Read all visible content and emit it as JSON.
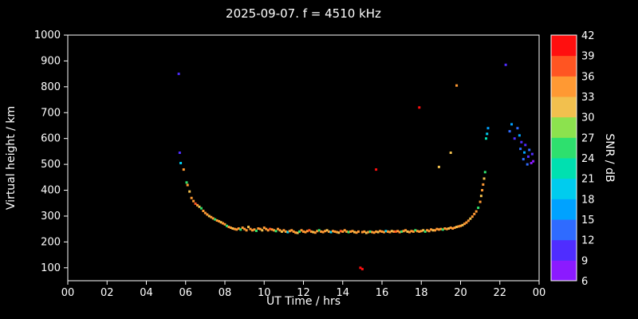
{
  "colors": {
    "background": "#000000",
    "foreground": "#ffffff"
  },
  "chart_data": {
    "type": "scatter",
    "title": "2025-09-07. f = 4510 kHz",
    "xlabel": "UT Time / hrs",
    "ylabel": "Virtual height / km",
    "xlim": [
      0,
      24
    ],
    "ylim": [
      50,
      1000
    ],
    "grid": false,
    "x_tick_values": [
      0,
      2,
      4,
      6,
      8,
      10,
      12,
      14,
      16,
      18,
      20,
      22,
      24
    ],
    "x_tick_labels": [
      "00",
      "02",
      "04",
      "06",
      "08",
      "10",
      "12",
      "14",
      "16",
      "18",
      "20",
      "22",
      "00"
    ],
    "y_tick_values": [
      1000,
      900,
      800,
      700,
      600,
      500,
      400,
      300,
      200,
      100
    ],
    "y_tick_labels": [
      "1000",
      "900",
      "800",
      "700",
      "600",
      "500",
      "400",
      "300",
      "200",
      "100"
    ],
    "colorbar": {
      "label": "SNR / dB",
      "min": 6,
      "max": 42,
      "tick_values": [
        42,
        39,
        36,
        33,
        30,
        27,
        24,
        21,
        18,
        15,
        12,
        9,
        6
      ],
      "segment_colors_bottom_to_top": [
        "#8b1aff",
        "#4f2dff",
        "#2f6bff",
        "#00a2ff",
        "#00ccee",
        "#00e0b0",
        "#2ee06e",
        "#8ce24e",
        "#f2c04e",
        "#ff9933",
        "#ff5522",
        "#ff0f0f"
      ]
    },
    "points_format": [
      "ut_hours",
      "virtual_height_km",
      "snr_db"
    ],
    "points": [
      [
        5.65,
        850,
        11
      ],
      [
        5.7,
        545,
        11
      ],
      [
        5.75,
        505,
        20
      ],
      [
        5.9,
        480,
        34
      ],
      [
        6.05,
        430,
        26
      ],
      [
        6.1,
        420,
        34
      ],
      [
        6.2,
        395,
        31
      ],
      [
        6.3,
        370,
        34
      ],
      [
        6.4,
        358,
        34
      ],
      [
        6.5,
        348,
        37
      ],
      [
        6.6,
        342,
        34
      ],
      [
        6.7,
        336,
        31
      ],
      [
        6.8,
        330,
        26
      ],
      [
        6.9,
        320,
        34
      ],
      [
        7.0,
        312,
        34
      ],
      [
        7.1,
        306,
        34
      ],
      [
        7.2,
        300,
        31
      ],
      [
        7.3,
        296,
        34
      ],
      [
        7.4,
        291,
        34
      ],
      [
        7.5,
        287,
        26
      ],
      [
        7.6,
        283,
        34
      ],
      [
        7.7,
        280,
        34
      ],
      [
        7.8,
        276,
        31
      ],
      [
        7.9,
        272,
        34
      ],
      [
        8.0,
        268,
        34
      ],
      [
        8.1,
        262,
        26
      ],
      [
        8.2,
        258,
        34
      ],
      [
        8.3,
        255,
        34
      ],
      [
        8.4,
        252,
        31
      ],
      [
        8.5,
        250,
        34
      ],
      [
        8.6,
        248,
        34
      ],
      [
        8.7,
        252,
        34
      ],
      [
        8.8,
        248,
        26
      ],
      [
        8.9,
        255,
        34
      ],
      [
        9.0,
        250,
        34
      ],
      [
        9.1,
        245,
        34
      ],
      [
        9.2,
        258,
        31
      ],
      [
        9.3,
        250,
        34
      ],
      [
        9.4,
        245,
        34
      ],
      [
        9.5,
        248,
        34
      ],
      [
        9.6,
        243,
        26
      ],
      [
        9.7,
        252,
        34
      ],
      [
        9.8,
        250,
        34
      ],
      [
        9.9,
        245,
        31
      ],
      [
        10.0,
        255,
        34
      ],
      [
        10.1,
        250,
        34
      ],
      [
        10.2,
        245,
        34
      ],
      [
        10.3,
        250,
        37
      ],
      [
        10.4,
        248,
        34
      ],
      [
        10.5,
        245,
        34
      ],
      [
        10.6,
        242,
        26
      ],
      [
        10.7,
        250,
        34
      ],
      [
        10.8,
        245,
        34
      ],
      [
        10.9,
        240,
        31
      ],
      [
        11.0,
        245,
        34
      ],
      [
        11.1,
        240,
        34
      ],
      [
        11.2,
        238,
        20
      ],
      [
        11.3,
        242,
        34
      ],
      [
        11.4,
        245,
        34
      ],
      [
        11.5,
        240,
        34
      ],
      [
        11.6,
        236,
        34
      ],
      [
        11.7,
        235,
        31
      ],
      [
        11.8,
        240,
        26
      ],
      [
        11.9,
        245,
        34
      ],
      [
        12.0,
        240,
        34
      ],
      [
        12.1,
        238,
        34
      ],
      [
        12.2,
        242,
        34
      ],
      [
        12.3,
        245,
        37
      ],
      [
        12.4,
        240,
        34
      ],
      [
        12.5,
        238,
        31
      ],
      [
        12.6,
        236,
        34
      ],
      [
        12.7,
        242,
        34
      ],
      [
        12.8,
        245,
        26
      ],
      [
        12.9,
        240,
        34
      ],
      [
        13.0,
        238,
        34
      ],
      [
        13.1,
        242,
        34
      ],
      [
        13.2,
        245,
        31
      ],
      [
        13.3,
        240,
        34
      ],
      [
        13.4,
        238,
        20
      ],
      [
        13.5,
        242,
        34
      ],
      [
        13.6,
        240,
        34
      ],
      [
        13.7,
        238,
        34
      ],
      [
        13.8,
        236,
        31
      ],
      [
        13.9,
        242,
        37
      ],
      [
        14.0,
        240,
        34
      ],
      [
        14.1,
        245,
        34
      ],
      [
        14.2,
        240,
        34
      ],
      [
        14.3,
        238,
        26
      ],
      [
        14.4,
        240,
        34
      ],
      [
        14.5,
        242,
        34
      ],
      [
        14.6,
        238,
        31
      ],
      [
        14.7,
        236,
        34
      ],
      [
        14.8,
        240,
        34
      ],
      [
        14.9,
        100,
        40
      ],
      [
        15.0,
        95,
        40
      ],
      [
        15.0,
        238,
        34
      ],
      [
        15.1,
        240,
        34
      ],
      [
        15.2,
        235,
        31
      ],
      [
        15.3,
        238,
        34
      ],
      [
        15.4,
        240,
        26
      ],
      [
        15.5,
        238,
        34
      ],
      [
        15.6,
        236,
        34
      ],
      [
        15.7,
        480,
        40
      ],
      [
        15.7,
        240,
        34
      ],
      [
        15.8,
        238,
        31
      ],
      [
        15.9,
        242,
        34
      ],
      [
        16.0,
        240,
        34
      ],
      [
        16.1,
        238,
        34
      ],
      [
        16.2,
        242,
        20
      ],
      [
        16.3,
        240,
        34
      ],
      [
        16.4,
        238,
        34
      ],
      [
        16.5,
        242,
        31
      ],
      [
        16.6,
        240,
        34
      ],
      [
        16.7,
        240,
        37
      ],
      [
        16.8,
        242,
        34
      ],
      [
        16.9,
        238,
        34
      ],
      [
        17.0,
        240,
        26
      ],
      [
        17.1,
        242,
        34
      ],
      [
        17.2,
        245,
        34
      ],
      [
        17.3,
        240,
        31
      ],
      [
        17.4,
        238,
        34
      ],
      [
        17.5,
        242,
        34
      ],
      [
        17.6,
        240,
        34
      ],
      [
        17.7,
        245,
        26
      ],
      [
        17.8,
        242,
        34
      ],
      [
        17.9,
        720,
        40
      ],
      [
        17.9,
        240,
        34
      ],
      [
        18.0,
        242,
        34
      ],
      [
        18.1,
        245,
        31
      ],
      [
        18.2,
        240,
        26
      ],
      [
        18.3,
        245,
        34
      ],
      [
        18.4,
        242,
        34
      ],
      [
        18.5,
        248,
        34
      ],
      [
        18.6,
        245,
        31
      ],
      [
        18.7,
        245,
        34
      ],
      [
        18.8,
        250,
        34
      ],
      [
        18.9,
        490,
        31
      ],
      [
        18.9,
        248,
        34
      ],
      [
        19.0,
        250,
        34
      ],
      [
        19.1,
        248,
        26
      ],
      [
        19.2,
        252,
        34
      ],
      [
        19.3,
        250,
        34
      ],
      [
        19.4,
        252,
        31
      ],
      [
        19.5,
        545,
        31
      ],
      [
        19.5,
        255,
        34
      ],
      [
        19.6,
        252,
        34
      ],
      [
        19.7,
        255,
        34
      ],
      [
        19.8,
        805,
        34
      ],
      [
        19.8,
        258,
        31
      ],
      [
        19.9,
        260,
        34
      ],
      [
        20.0,
        262,
        34
      ],
      [
        20.1,
        265,
        31
      ],
      [
        20.2,
        270,
        34
      ],
      [
        20.3,
        275,
        34
      ],
      [
        20.4,
        282,
        34
      ],
      [
        20.5,
        290,
        31
      ],
      [
        20.6,
        298,
        34
      ],
      [
        20.7,
        308,
        34
      ],
      [
        20.8,
        318,
        34
      ],
      [
        20.9,
        332,
        26
      ],
      [
        21.0,
        355,
        34
      ],
      [
        21.05,
        378,
        31
      ],
      [
        21.1,
        400,
        34
      ],
      [
        21.15,
        422,
        34
      ],
      [
        21.2,
        445,
        31
      ],
      [
        21.25,
        470,
        26
      ],
      [
        21.3,
        600,
        23
      ],
      [
        21.35,
        618,
        20
      ],
      [
        21.4,
        640,
        17
      ],
      [
        22.3,
        885,
        11
      ],
      [
        22.5,
        628,
        14
      ],
      [
        22.6,
        655,
        17
      ],
      [
        22.75,
        600,
        11
      ],
      [
        22.9,
        640,
        14
      ],
      [
        23.0,
        612,
        17
      ],
      [
        23.05,
        560,
        14
      ],
      [
        23.1,
        586,
        11
      ],
      [
        23.2,
        520,
        14
      ],
      [
        23.25,
        546,
        17
      ],
      [
        23.3,
        575,
        11
      ],
      [
        23.4,
        500,
        14
      ],
      [
        23.45,
        530,
        11
      ],
      [
        23.5,
        556,
        14
      ],
      [
        23.6,
        505,
        8
      ],
      [
        23.65,
        540,
        11
      ],
      [
        23.7,
        512,
        7
      ]
    ]
  }
}
